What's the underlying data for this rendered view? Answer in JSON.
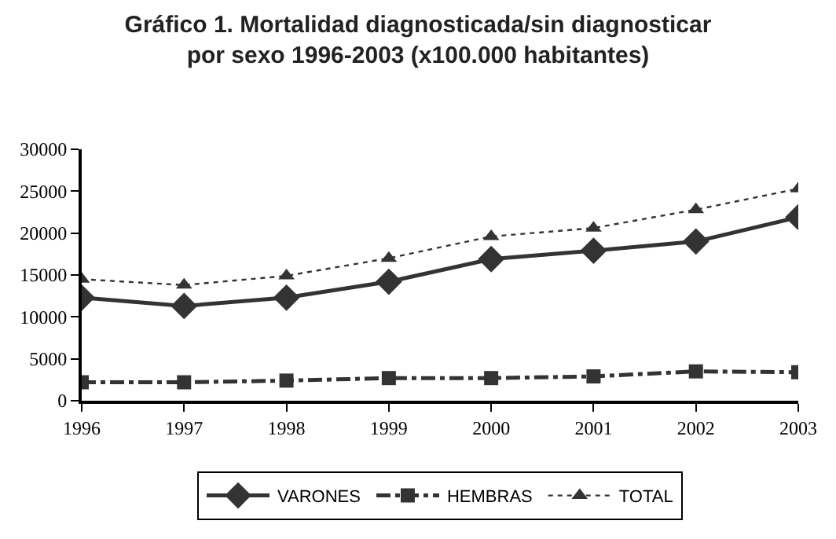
{
  "chart_data": {
    "type": "line",
    "title": "Gráfico 1. Mortalidad diagnosticada/sin diagnosticar\npor sexo 1996-2003 (x100.000 habitantes)",
    "x": [
      1996,
      1997,
      1998,
      1999,
      2000,
      2001,
      2002,
      2003
    ],
    "series": [
      {
        "name": "VARONES",
        "color": "#333333",
        "marker": "diamond",
        "line_style": "solid",
        "values": [
          12300,
          11300,
          12300,
          14200,
          16900,
          17900,
          19000,
          21900
        ]
      },
      {
        "name": "HEMBRAS",
        "color": "#333333",
        "marker": "square",
        "line_style": "dashdot",
        "values": [
          2200,
          2200,
          2400,
          2700,
          2700,
          2900,
          3500,
          3400
        ]
      },
      {
        "name": "TOTAL",
        "color": "#333333",
        "marker": "triangle",
        "line_style": "dotted",
        "values": [
          14500,
          13800,
          14900,
          17000,
          19600,
          20600,
          22800,
          25300
        ]
      }
    ],
    "xlim": [
      1996,
      2003
    ],
    "xticks": [
      1996,
      1997,
      1998,
      1999,
      2000,
      2001,
      2002,
      2003
    ],
    "ylim": [
      0,
      30000
    ],
    "yticks": [
      0,
      5000,
      10000,
      15000,
      20000,
      25000,
      30000
    ],
    "legend": "bottom"
  }
}
